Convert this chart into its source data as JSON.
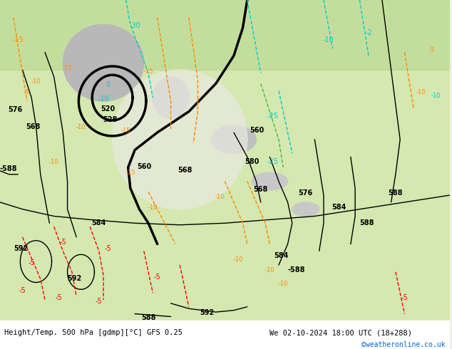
{
  "title_left": "Height/Temp. 500 hPa [gdmp][°C] GFS 0.25",
  "title_right": "We 02-10-2024 18:00 UTC (18+288)",
  "credit": "©weatheronline.co.uk",
  "bg_color": "#f0f0e8",
  "map_bg_light": "#c8e6a0",
  "map_bg_gray": "#c8c8c8",
  "text_color_black": "#000000",
  "text_color_cyan": "#00cccc",
  "text_color_orange": "#ff8800",
  "text_color_red": "#ff0000",
  "text_color_green": "#44aa44",
  "contour_color_black": "#000000",
  "contour_color_cyan": "#00cccc",
  "contour_color_orange": "#ff8800",
  "contour_color_red": "#ff0000",
  "figsize": [
    6.34,
    4.9
  ],
  "dpi": 100
}
